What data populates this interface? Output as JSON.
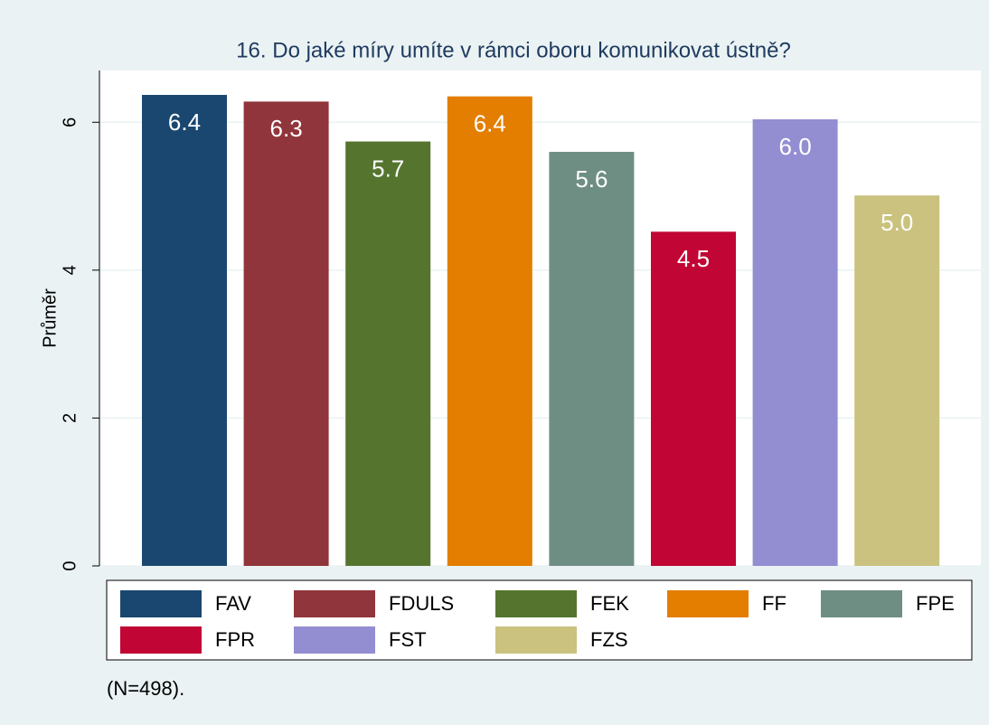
{
  "chart_data": {
    "type": "bar",
    "title": "16. Do jaké míry umíte v rámci oboru komunikovat ústně?",
    "y_label": "Průměr",
    "note": "(N=498).",
    "categories": [
      "FAV",
      "FDULS",
      "FEK",
      "FF",
      "FPE",
      "FPR",
      "FST",
      "FZS"
    ],
    "values": [
      6.37,
      6.28,
      5.74,
      6.35,
      5.6,
      4.52,
      6.04,
      5.01
    ],
    "value_labels": [
      "6.4",
      "6.3",
      "5.7",
      "6.4",
      "5.6",
      "4.5",
      "6.0",
      "5.0"
    ],
    "colors": [
      "#1a476f",
      "#90353b",
      "#55752f",
      "#e37e00",
      "#6e8e84",
      "#c10534",
      "#938dd2",
      "#cac27e"
    ],
    "ylim": [
      0,
      6.7
    ],
    "yticks": [
      0,
      2,
      4,
      6
    ],
    "grid": true
  }
}
